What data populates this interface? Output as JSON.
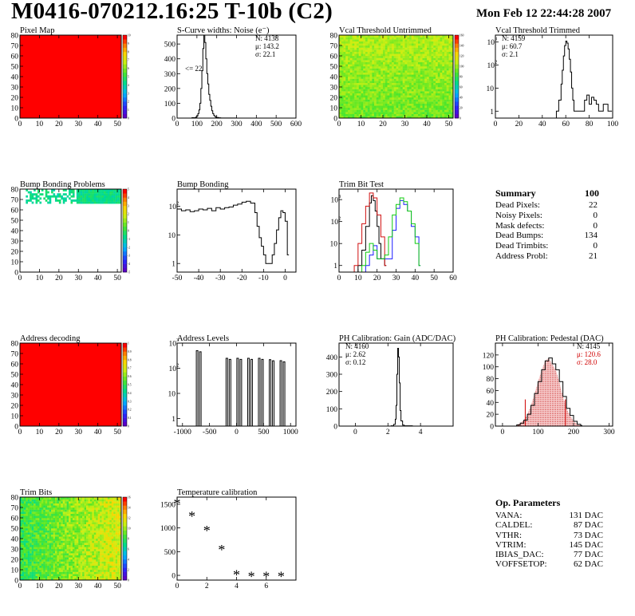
{
  "header": {
    "title": "M0416-070212.16:25 T-10b (C2)",
    "date": "Mon Feb 12 22:44:28 2007"
  },
  "chart_data": [
    {
      "id": "pixel_map",
      "type": "heatmap",
      "title": "Pixel Map",
      "xlim": [
        0,
        52
      ],
      "ylim": [
        0,
        80
      ],
      "xticks": [
        0,
        10,
        20,
        30,
        40,
        50
      ],
      "yticks": [
        0,
        10,
        20,
        30,
        40,
        50,
        60,
        70,
        80
      ],
      "palette": "red",
      "zrange": [
        0,
        10
      ],
      "zticks": [
        0,
        1,
        2,
        3,
        4,
        5,
        6,
        7,
        8,
        9,
        10
      ],
      "values": "all pixels red (uniform response, max value)"
    },
    {
      "id": "scurve_widths",
      "type": "line",
      "title": "S-Curve widths: Noise (e⁻)",
      "xlim": [
        0,
        600
      ],
      "ylim": [
        0,
        560
      ],
      "xticks": [
        0,
        100,
        200,
        300,
        400,
        500,
        600
      ],
      "yticks": [
        0,
        100,
        200,
        300,
        400,
        500
      ],
      "stats": {
        "N": "4138",
        "mu": "143.2",
        "sigma": "22.1"
      },
      "annotation": "<= 22",
      "x": [
        50,
        75,
        95,
        100,
        105,
        110,
        115,
        120,
        125,
        130,
        135,
        140,
        145,
        150,
        155,
        160,
        165,
        170,
        175,
        180,
        185,
        190,
        195,
        200,
        210,
        220,
        240,
        260,
        300
      ],
      "y": [
        0,
        3,
        8,
        15,
        30,
        55,
        100,
        200,
        320,
        470,
        560,
        510,
        400,
        300,
        230,
        160,
        120,
        80,
        50,
        30,
        18,
        10,
        6,
        4,
        2,
        1,
        1,
        1,
        0
      ]
    },
    {
      "id": "vcal_untrimmed",
      "type": "heatmap",
      "title": "Vcal Threshold Untrimmed",
      "xlim": [
        0,
        52
      ],
      "ylim": [
        0,
        80
      ],
      "xticks": [
        0,
        10,
        20,
        30,
        40,
        50
      ],
      "yticks": [
        0,
        10,
        20,
        30,
        40,
        50,
        60,
        70,
        80
      ],
      "palette": "rainbow",
      "zticks": [
        0,
        20,
        40,
        60,
        80,
        100,
        120,
        140,
        160
      ],
      "values": "mostly yellow-green (~90-110), more yellow at top rows"
    },
    {
      "id": "vcal_trimmed",
      "type": "line",
      "title": "Vcal Threshold Trimmed",
      "xscale": "linear",
      "yscale": "log",
      "xlim": [
        0,
        100
      ],
      "ylim": [
        0.5,
        2000
      ],
      "xticks": [
        0,
        20,
        40,
        60,
        80,
        100
      ],
      "yticks": [
        1,
        10,
        100,
        1000
      ],
      "stats": {
        "N": "4159",
        "mu": "60.7",
        "sigma": "2.1"
      },
      "x": [
        52,
        54,
        56,
        57,
        58,
        59,
        60,
        61,
        62,
        63,
        64,
        65,
        66,
        67,
        68,
        76,
        78,
        80,
        82,
        84,
        86,
        88,
        92,
        96,
        98
      ],
      "y": [
        1,
        3,
        15,
        60,
        250,
        700,
        1100,
        900,
        500,
        180,
        50,
        10,
        3,
        1,
        1,
        3,
        5,
        2,
        4,
        3,
        2,
        1,
        2,
        1,
        1
      ]
    },
    {
      "id": "bump_map",
      "type": "heatmap",
      "title": "Bump Bonding Problems",
      "xlim": [
        0,
        52
      ],
      "ylim": [
        0,
        80
      ],
      "xticks": [
        0,
        10,
        20,
        30,
        40,
        50
      ],
      "yticks": [
        0,
        10,
        20,
        30,
        40,
        50,
        60,
        70,
        80
      ],
      "palette": "rainbow",
      "zticks": [
        -5,
        -4,
        -3,
        -2,
        -1,
        0,
        1,
        2,
        3,
        4,
        5
      ],
      "values": "white except cyan/green cells in top rows (y 68-80)"
    },
    {
      "id": "bump_bonding",
      "type": "line",
      "title": "Bump Bonding",
      "yscale": "log",
      "xlim": [
        -50,
        5
      ],
      "ylim": [
        0.5,
        400
      ],
      "xticks": [
        -50,
        -40,
        -30,
        -20,
        -10,
        0
      ],
      "yticks": [
        1,
        10,
        100
      ],
      "x": [
        -50,
        -48,
        -46,
        -44,
        -42,
        -40,
        -38,
        -36,
        -34,
        -32,
        -30,
        -28,
        -26,
        -24,
        -22,
        -20,
        -18,
        -16,
        -14,
        -13,
        -12,
        -11,
        -10,
        -9,
        -8,
        -7,
        -6,
        -5,
        -4,
        -3,
        -2,
        -1,
        0,
        1
      ],
      "y": [
        80,
        70,
        75,
        65,
        70,
        80,
        75,
        85,
        70,
        90,
        80,
        90,
        95,
        110,
        120,
        140,
        150,
        130,
        60,
        20,
        8,
        4,
        2,
        1,
        1,
        1,
        2,
        5,
        15,
        40,
        70,
        60,
        30,
        2
      ]
    },
    {
      "id": "trim_bit_test",
      "type": "line",
      "title": "Trim Bit Test",
      "yscale": "log",
      "xlim": [
        0,
        60
      ],
      "ylim": [
        0.5,
        3000
      ],
      "xticks": [
        0,
        10,
        20,
        30,
        40,
        50,
        60
      ],
      "yticks": [
        1,
        10,
        100,
        1000
      ],
      "series": [
        {
          "color": "#000000",
          "x": [
            10,
            12,
            14,
            16,
            17,
            18,
            19,
            20,
            21,
            22,
            24
          ],
          "y": [
            1,
            5,
            60,
            700,
            1500,
            900,
            300,
            60,
            10,
            2,
            1
          ]
        },
        {
          "color": "#d01010",
          "x": [
            8,
            10,
            12,
            14,
            16,
            18,
            20,
            22,
            24
          ],
          "y": [
            1,
            10,
            80,
            500,
            2000,
            1200,
            200,
            20,
            1
          ]
        },
        {
          "color": "#1c1cff",
          "x": [
            14,
            16,
            18,
            20,
            26,
            28,
            30,
            32,
            34,
            36,
            38,
            40,
            42
          ],
          "y": [
            1,
            3,
            8,
            2,
            2,
            40,
            400,
            900,
            600,
            300,
            60,
            20,
            1
          ]
        },
        {
          "color": "#11cc11",
          "x": [
            12,
            14,
            16,
            18,
            20,
            24,
            26,
            28,
            30,
            32,
            34,
            36,
            38,
            40,
            42
          ],
          "y": [
            1,
            4,
            10,
            5,
            2,
            3,
            20,
            200,
            600,
            1200,
            800,
            300,
            80,
            10,
            1
          ]
        }
      ]
    },
    {
      "id": "address_decoding",
      "type": "heatmap",
      "title": "Address decoding",
      "xlim": [
        0,
        52
      ],
      "ylim": [
        0,
        80
      ],
      "xticks": [
        0,
        10,
        20,
        30,
        40,
        50
      ],
      "yticks": [
        0,
        10,
        20,
        30,
        40,
        50,
        60,
        70,
        80
      ],
      "palette": "red",
      "zticks": [
        0,
        0.1,
        0.2,
        0.3,
        0.4,
        0.5,
        0.6,
        0.7,
        0.8,
        0.9,
        1
      ],
      "values": "all pixels red (value 1)"
    },
    {
      "id": "address_levels",
      "type": "line",
      "title": "Address Levels",
      "yscale": "log",
      "xlim": [
        -1100,
        1100
      ],
      "ylim": [
        0.5,
        1000
      ],
      "xticks": [
        -1000,
        -500,
        0,
        500,
        1000
      ],
      "yticks": [
        1,
        10,
        100,
        1000
      ],
      "x": [
        -700,
        -150,
        50,
        250,
        450,
        650,
        850
      ],
      "y": [
        500,
        250,
        250,
        250,
        250,
        220,
        200
      ],
      "note": "narrow spikes at address levels"
    },
    {
      "id": "ph_gain",
      "type": "line",
      "title": "PH Calibration: Gain (ADC/DAC)",
      "xlim": [
        -1,
        6
      ],
      "ylim": [
        0,
        480
      ],
      "xticks": [
        0,
        2,
        4
      ],
      "yticks": [
        0,
        100,
        200,
        300,
        400
      ],
      "stats": {
        "N": "4160",
        "mu": "2.62",
        "sigma": "0.12"
      },
      "x": [
        1.0,
        2.2,
        2.35,
        2.45,
        2.5,
        2.55,
        2.6,
        2.65,
        2.7,
        2.75,
        2.8,
        2.9,
        3.0,
        3.5
      ],
      "y": [
        0,
        2,
        10,
        40,
        120,
        300,
        450,
        400,
        250,
        90,
        30,
        6,
        2,
        0
      ]
    },
    {
      "id": "ph_pedestal",
      "type": "line",
      "title": "PH Calibration: Pedestal (DAC)",
      "xlim": [
        -20,
        310
      ],
      "ylim": [
        0,
        140
      ],
      "xticks": [
        0,
        100,
        200,
        300
      ],
      "yticks": [
        0,
        20,
        40,
        60,
        80,
        100,
        120
      ],
      "stats": {
        "N": "4145",
        "mu": "120.6",
        "sigma": "28.0"
      },
      "x": [
        40,
        50,
        60,
        70,
        80,
        90,
        100,
        110,
        120,
        130,
        140,
        150,
        160,
        170,
        180,
        190,
        200,
        210,
        220
      ],
      "y": [
        2,
        5,
        10,
        20,
        35,
        55,
        75,
        95,
        110,
        115,
        105,
        95,
        75,
        50,
        30,
        18,
        8,
        3,
        1
      ],
      "fit_markers": [
        64,
        177
      ]
    },
    {
      "id": "trim_bits",
      "type": "heatmap",
      "title": "Trim Bits",
      "xlim": [
        0,
        52
      ],
      "ylim": [
        0,
        80
      ],
      "xticks": [
        0,
        10,
        20,
        30,
        40,
        50
      ],
      "yticks": [
        0,
        10,
        20,
        30,
        40,
        50,
        60,
        70,
        80
      ],
      "palette": "rainbow",
      "zticks": [
        0,
        2,
        4,
        6,
        8,
        10,
        12,
        14,
        16
      ],
      "values": "green on left, yellow/orange towards right"
    },
    {
      "id": "temperature",
      "type": "scatter",
      "title": "Temperature calibration",
      "xlim": [
        0,
        8
      ],
      "ylim": [
        -100,
        1650
      ],
      "xticks": [
        0,
        2,
        4,
        6
      ],
      "yticks": [
        0,
        500,
        1000,
        1500
      ],
      "x": [
        0,
        1,
        2,
        3,
        4,
        5,
        6,
        7
      ],
      "y": [
        1530,
        1260,
        960,
        560,
        30,
        -5,
        -5,
        -5
      ]
    }
  ],
  "summary": {
    "title": "Summary",
    "total": "100",
    "rows": [
      {
        "label": "Dead Pixels:",
        "value": "22"
      },
      {
        "label": "Noisy Pixels:",
        "value": "0"
      },
      {
        "label": "Mask defects:",
        "value": "0"
      },
      {
        "label": "Dead Bumps:",
        "value": "134"
      },
      {
        "label": "Dead Trimbits:",
        "value": "0"
      },
      {
        "label": "Address Probl:",
        "value": "21"
      }
    ]
  },
  "op_parameters": {
    "title": "Op. Parameters",
    "rows": [
      {
        "label": "VANA:",
        "value": "131 DAC"
      },
      {
        "label": "CALDEL:",
        "value": "87 DAC"
      },
      {
        "label": "VTHR:",
        "value": "73 DAC"
      },
      {
        "label": "VTRIM:",
        "value": "145 DAC"
      },
      {
        "label": "IBIAS_DAC:",
        "value": "77 DAC"
      },
      {
        "label": "VOFFSETOP:",
        "value": "62 DAC"
      }
    ]
  }
}
